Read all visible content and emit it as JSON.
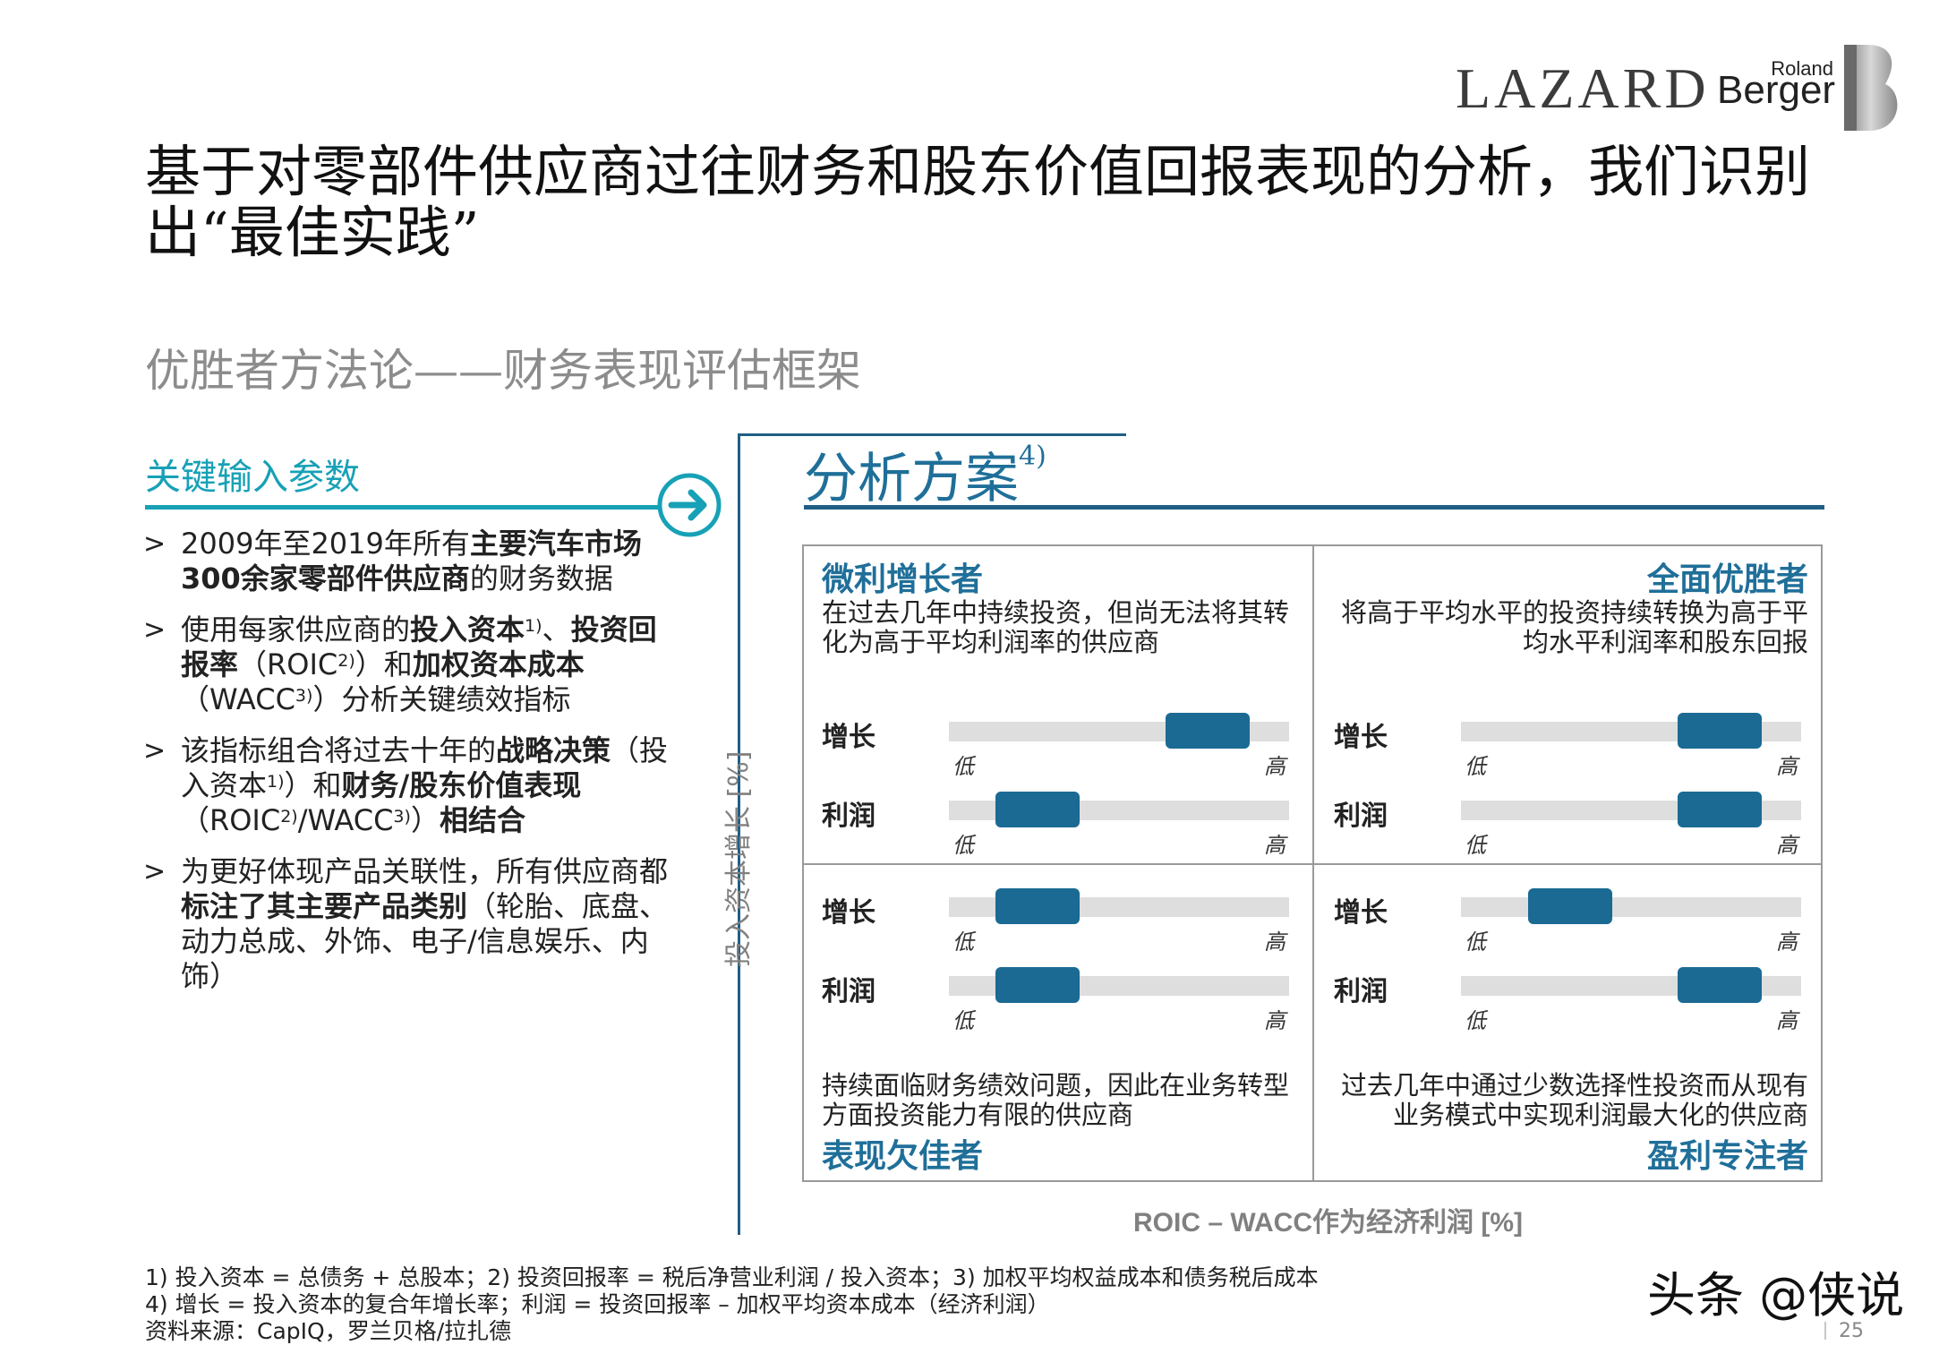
{
  "logos": {
    "lazard": "LAZARD",
    "rb_small": "Roland",
    "rb_big": "Berger"
  },
  "title": "基于对零部件供应商过往财务和股东价值回报表现的分析，我们识别出“最佳实践”",
  "subtitle": "优胜者方法论——财务表现评估框架",
  "left_panel": {
    "heading": "关键输入参数",
    "bullets": [
      {
        "parts": [
          {
            "t": "2009年至2019年所有"
          },
          {
            "t": "主要汽车市场300余家零部件供应商",
            "b": true
          },
          {
            "t": "的财务数据"
          }
        ]
      },
      {
        "parts": [
          {
            "t": "使用每家供应商的"
          },
          {
            "t": "投入资本",
            "b": true
          },
          {
            "t": "1)",
            "sup": true
          },
          {
            "t": "、"
          },
          {
            "t": "投资回报率",
            "b": true
          },
          {
            "t": "（ROIC"
          },
          {
            "t": "2)",
            "sup": true
          },
          {
            "t": "）和"
          },
          {
            "t": "加权资本成本",
            "b": true
          },
          {
            "t": "（WACC"
          },
          {
            "t": "3)",
            "sup": true
          },
          {
            "t": "）分析关键绩效指标"
          }
        ]
      },
      {
        "parts": [
          {
            "t": "该指标组合将过去十年的"
          },
          {
            "t": "战略决策",
            "b": true
          },
          {
            "t": "（投入资本"
          },
          {
            "t": "1)",
            "sup": true
          },
          {
            "t": "）和"
          },
          {
            "t": "财务/股东价值表现",
            "b": true
          },
          {
            "t": "（ROIC"
          },
          {
            "t": "2)",
            "sup": true
          },
          {
            "t": "/WACC"
          },
          {
            "t": "3)",
            "sup": true
          },
          {
            "t": "）"
          },
          {
            "t": "相结合",
            "b": true
          }
        ]
      },
      {
        "parts": [
          {
            "t": "为更好体现产品关联性，所有供应商都"
          },
          {
            "t": "标注了其主要产品类别",
            "b": true
          },
          {
            "t": "（轮胎、底盘、动力总成、外饰、电子/信息娱乐、内饰）"
          }
        ]
      }
    ]
  },
  "analysis": {
    "title": "分析方案",
    "title_sup": "4)",
    "y_axis": "投入资本增长 [%]",
    "x_axis": "ROIC – WACC作为经济利润 [%]",
    "quadrants": {
      "top_left": {
        "title": "微利增长者",
        "desc": "在过去几年中持续投资，但尚无法将其转化为高于平均利润率的供应商"
      },
      "top_right": {
        "title": "全面优胜者",
        "desc": "将高于平均水平的投资持续转换为高于平均水平利润率和股东回报"
      },
      "bottom_left": {
        "title": "表现欠佳者",
        "desc": "持续面临财务绩效问题，因此在业务转型方面投资能力有限的供应商"
      },
      "bottom_right": {
        "title": "盈利专注者",
        "desc": "过去几年中通过少数选择性投资而从现有业务模式中实现利润最大化的供应商"
      }
    },
    "row_labels": {
      "growth": "增长",
      "profit": "利润"
    },
    "scale": {
      "low": "低",
      "high": "高"
    },
    "levels": {
      "top_left": {
        "growth": 0.76,
        "profit": 0.26
      },
      "top_right": {
        "growth": 0.76,
        "profit": 0.76
      },
      "bottom_left": {
        "growth": 0.26,
        "profit": 0.26
      },
      "bottom_right": {
        "growth": 0.32,
        "profit": 0.76
      }
    },
    "colors": {
      "accent": "#1b6a93",
      "track": "#dedede"
    }
  },
  "footnotes": [
    "1) 投入资本 = 总债务 + 总股本；2) 投资回报率 = 税后净营业利润 / 投入资本；3) 加权平均权益成本和债务税后成本",
    "4) 增长 = 投入资本的复合年增长率；利润 = 投资回报率 – 加权平均资本成本（经济利润）",
    "资料来源：CapIQ，罗兰贝格/拉扎德"
  ],
  "watermark": "头条 @侠说",
  "page_number": "25"
}
